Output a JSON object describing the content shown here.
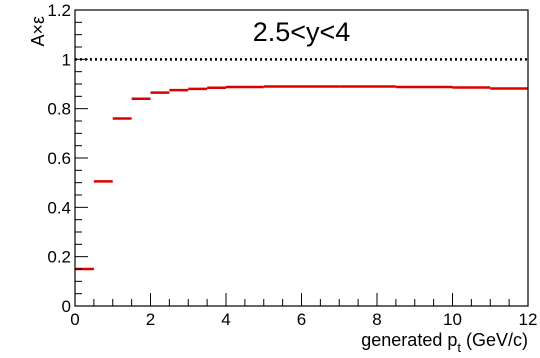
{
  "chart_data": {
    "type": "scatter",
    "style": "horizontal-bin-segments",
    "annotation": "2.5<y<4",
    "xlabel": "generated p",
    "xlabel_subscript": "t",
    "xlabel_unit": " (GeV/c)",
    "ylabel": "A×ε",
    "xlim": [
      0,
      12
    ],
    "ylim": [
      0,
      1.2
    ],
    "x_major_ticks": [
      0,
      2,
      4,
      6,
      8,
      10,
      12
    ],
    "y_major_ticks": [
      0,
      0.2,
      0.4,
      0.6,
      0.8,
      1,
      1.2
    ],
    "x_tick_labels": [
      "0",
      "2",
      "4",
      "6",
      "8",
      "10",
      "12"
    ],
    "y_tick_labels": [
      "0",
      "0.2",
      "0.4",
      "0.6",
      "0.8",
      "1",
      "1.2"
    ],
    "reference_line": {
      "y": 1,
      "style": "dotted"
    },
    "grid": false,
    "series_color": "#dd0000",
    "series": [
      {
        "bins": [
          {
            "x_low": 0.0,
            "x_high": 0.5,
            "y": 0.15
          },
          {
            "x_low": 0.5,
            "x_high": 1.0,
            "y": 0.505
          },
          {
            "x_low": 1.0,
            "x_high": 1.5,
            "y": 0.76
          },
          {
            "x_low": 1.5,
            "x_high": 2.0,
            "y": 0.84
          },
          {
            "x_low": 2.0,
            "x_high": 2.5,
            "y": 0.865
          },
          {
            "x_low": 2.5,
            "x_high": 3.0,
            "y": 0.875
          },
          {
            "x_low": 3.0,
            "x_high": 3.5,
            "y": 0.88
          },
          {
            "x_low": 3.5,
            "x_high": 4.0,
            "y": 0.885
          },
          {
            "x_low": 4.0,
            "x_high": 5.0,
            "y": 0.888
          },
          {
            "x_low": 5.0,
            "x_high": 6.0,
            "y": 0.89
          },
          {
            "x_low": 6.0,
            "x_high": 7.0,
            "y": 0.89
          },
          {
            "x_low": 7.0,
            "x_high": 8.5,
            "y": 0.89
          },
          {
            "x_low": 8.5,
            "x_high": 10.0,
            "y": 0.888
          },
          {
            "x_low": 10.0,
            "x_high": 11.0,
            "y": 0.886
          },
          {
            "x_low": 11.0,
            "x_high": 12.0,
            "y": 0.882
          }
        ]
      }
    ]
  }
}
